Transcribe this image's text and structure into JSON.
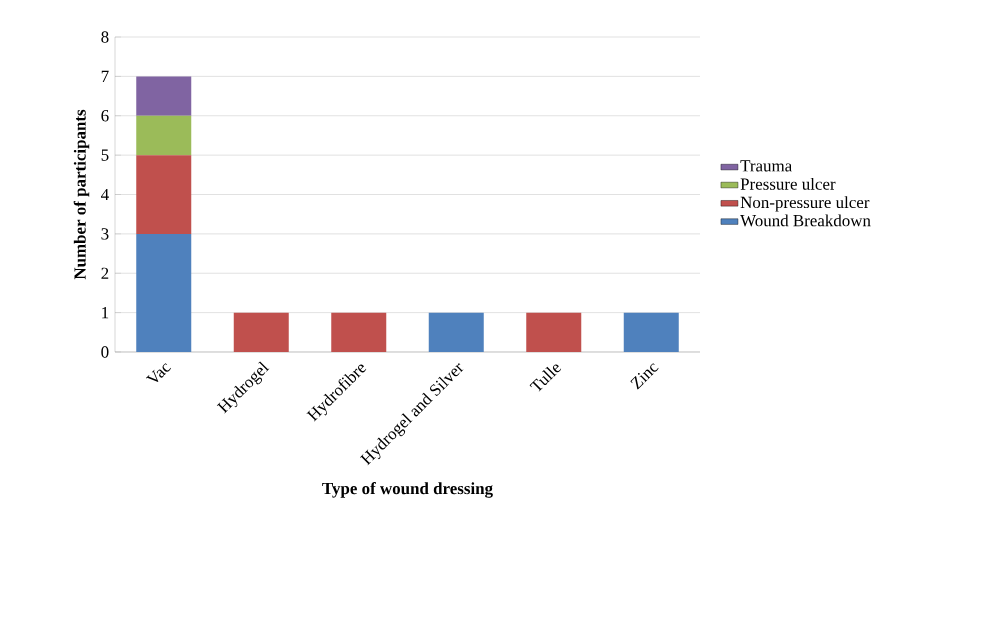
{
  "chart_data": {
    "type": "bar",
    "stacked": true,
    "xlabel": "Type of wound dressing",
    "ylabel": "Number of participants",
    "categories": [
      "Vac",
      "Hydrogel",
      "Hydrofibre",
      "Hydrogel and Silver",
      "Tulle",
      "Zinc"
    ],
    "series": [
      {
        "name": "Wound Breakdown",
        "color": "#4f81bd",
        "values": [
          3,
          0,
          0,
          1,
          0,
          1
        ]
      },
      {
        "name": "Non-pressure ulcer",
        "color": "#c0504d",
        "values": [
          2,
          1,
          1,
          0,
          1,
          0
        ]
      },
      {
        "name": "Pressure ulcer",
        "color": "#9bbb59",
        "values": [
          1,
          0,
          0,
          0,
          0,
          0
        ]
      },
      {
        "name": "Trauma",
        "color": "#8064a2",
        "values": [
          1,
          0,
          0,
          0,
          0,
          0
        ]
      }
    ],
    "ylim": [
      0,
      8
    ],
    "yticks": [
      0,
      1,
      2,
      3,
      4,
      5,
      6,
      7,
      8
    ],
    "grid": "y",
    "legend": "right"
  }
}
